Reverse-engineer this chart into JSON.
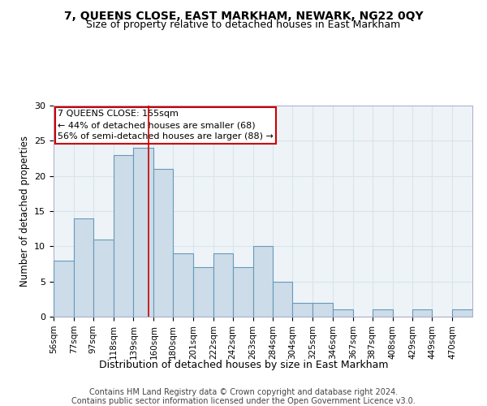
{
  "title1": "7, QUEENS CLOSE, EAST MARKHAM, NEWARK, NG22 0QY",
  "title2": "Size of property relative to detached houses in East Markham",
  "xlabel": "Distribution of detached houses by size in East Markham",
  "ylabel": "Number of detached properties",
  "categories": [
    "56sqm",
    "77sqm",
    "97sqm",
    "118sqm",
    "139sqm",
    "160sqm",
    "180sqm",
    "201sqm",
    "222sqm",
    "242sqm",
    "263sqm",
    "284sqm",
    "304sqm",
    "325sqm",
    "346sqm",
    "367sqm",
    "387sqm",
    "408sqm",
    "429sqm",
    "449sqm",
    "470sqm"
  ],
  "values": [
    8,
    14,
    11,
    23,
    24,
    21,
    9,
    7,
    9,
    7,
    10,
    5,
    2,
    2,
    1,
    0,
    1,
    0,
    1,
    0,
    1
  ],
  "bar_color": "#ccdce8",
  "bar_edge_color": "#6699bb",
  "grid_color": "#d8e4ec",
  "bin_edges": [
    56,
    77,
    97,
    118,
    139,
    160,
    180,
    201,
    222,
    242,
    263,
    284,
    304,
    325,
    346,
    367,
    387,
    408,
    429,
    449,
    470,
    491
  ],
  "annotation_text_line1": "7 QUEENS CLOSE: 155sqm",
  "annotation_text_line2": "← 44% of detached houses are smaller (68)",
  "annotation_text_line3": "56% of semi-detached houses are larger (88) →",
  "annotation_box_color": "#ffffff",
  "annotation_box_edge_color": "#cc0000",
  "vline_color": "#cc0000",
  "footer1": "Contains HM Land Registry data © Crown copyright and database right 2024.",
  "footer2": "Contains public sector information licensed under the Open Government Licence v3.0.",
  "ylim": [
    0,
    30
  ],
  "bg_color": "#eef3f7"
}
